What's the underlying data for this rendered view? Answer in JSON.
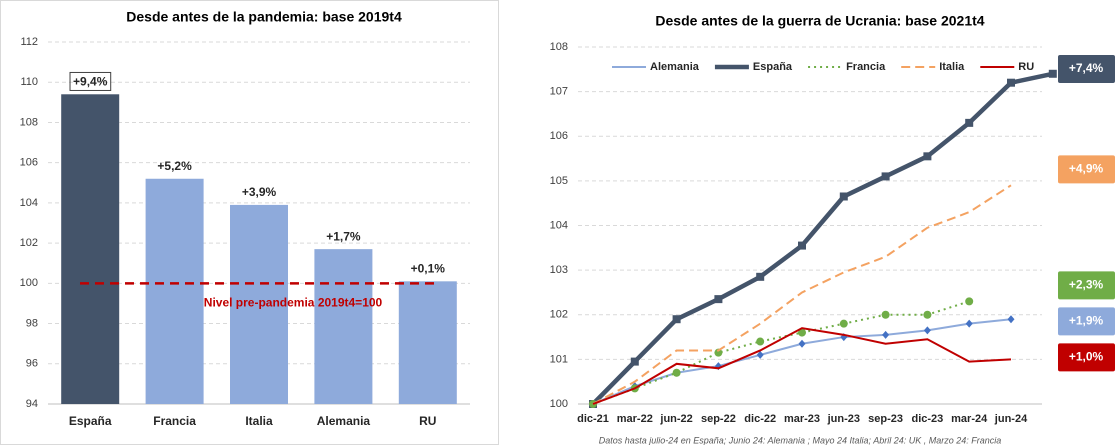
{
  "chart_data": [
    {
      "type": "bar",
      "title": "Desde antes de la pandemia: base 2019t4",
      "categories": [
        "España",
        "Francia",
        "Italia",
        "Alemania",
        "RU"
      ],
      "values": [
        109.4,
        105.2,
        103.9,
        101.7,
        100.1
      ],
      "value_labels": [
        "+9,4%",
        "+5,2%",
        "+3,9%",
        "+1,7%",
        "+0,1%"
      ],
      "colors": [
        "#44546a",
        "#8eaadb",
        "#8eaadb",
        "#8eaadb",
        "#8eaadb"
      ],
      "ylim": [
        94,
        112
      ],
      "yticks": [
        94,
        96,
        98,
        100,
        102,
        104,
        106,
        108,
        110,
        112
      ],
      "grid": true,
      "reference_line": {
        "value": 100,
        "label": "Nivel pre-pandemia 2019t4=100",
        "color": "#c00000"
      }
    },
    {
      "type": "line",
      "title": "Desde antes de la guerra de Ucrania: base 2021t4",
      "categories": [
        "dic-21",
        "mar-22",
        "jun-22",
        "sep-22",
        "dic-22",
        "mar-23",
        "jun-23",
        "sep-23",
        "dic-23",
        "mar-24",
        "jun-24",
        null
      ],
      "series": [
        {
          "name": "Alemania",
          "color": "#8eaadb",
          "marker": "diamond",
          "dash": "solid",
          "end_label": "+1,9%",
          "values": [
            100,
            100.4,
            100.7,
            100.85,
            101.1,
            101.35,
            101.5,
            101.55,
            101.65,
            101.8,
            101.9,
            null
          ]
        },
        {
          "name": "España",
          "color": "#44546a",
          "marker": "square",
          "dash": "solid",
          "end_label": "+7,4%",
          "values": [
            100,
            100.95,
            101.9,
            102.35,
            102.85,
            103.55,
            104.65,
            105.1,
            105.55,
            106.3,
            107.2,
            107.4
          ]
        },
        {
          "name": "Francia",
          "color": "#70ad47",
          "marker": "circle",
          "dash": "dot",
          "end_label": "+2,3%",
          "values": [
            100,
            100.35,
            100.7,
            101.15,
            101.4,
            101.6,
            101.8,
            102.0,
            102.0,
            102.3,
            null,
            null
          ]
        },
        {
          "name": "Italia",
          "color": "#f4a261",
          "marker": null,
          "dash": "dash",
          "end_label": "+4,9%",
          "values": [
            100,
            100.5,
            101.2,
            101.2,
            101.8,
            102.5,
            102.95,
            103.3,
            103.95,
            104.3,
            104.9,
            null
          ]
        },
        {
          "name": "RU",
          "color": "#c00000",
          "marker": null,
          "dash": "solid",
          "end_label": "+1,0%",
          "values": [
            100,
            100.35,
            100.9,
            100.8,
            101.2,
            101.7,
            101.55,
            101.35,
            101.45,
            100.95,
            101.0,
            null
          ]
        }
      ],
      "ylim": [
        100,
        108
      ],
      "yticks": [
        100,
        101,
        102,
        103,
        104,
        105,
        106,
        107,
        108
      ],
      "grid": true,
      "legend": "top",
      "note": "Datos hasta julio-24 en España; Junio 24: Alemania ; Mayo 24 Italia; Abril 24: UK , Marzo 24: Francia"
    }
  ]
}
